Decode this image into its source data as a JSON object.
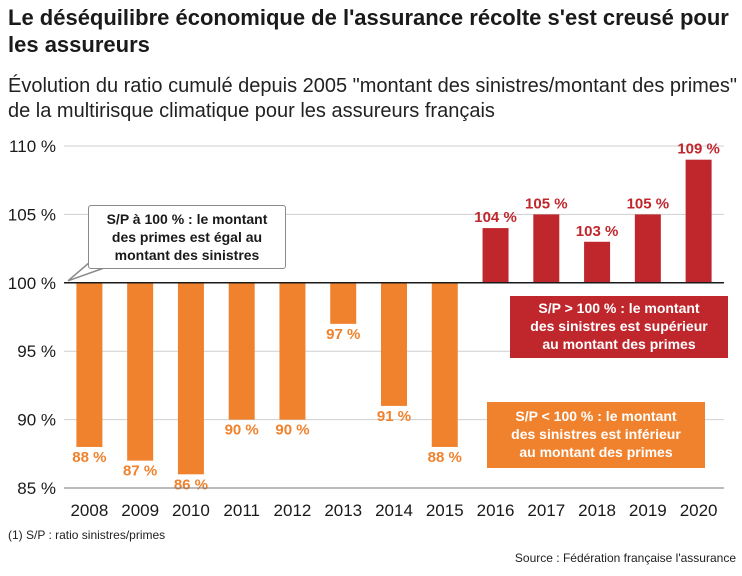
{
  "title": "Le déséquilibre économique de l'assurance récolte s'est creusé pour les assureurs",
  "subtitle": "Évolution du ratio cumulé depuis 2005 \"montant des sinistres/montant des primes\" de la multirisque climatique pour les assureurs français",
  "footnote": "(1) S/P : ratio sinistres/primes",
  "source": "Source : Fédération française l'assurance",
  "callouts": {
    "equal": [
      "S/P à 100 % : le montant",
      "des primes est égal au",
      "montant des sinistres"
    ],
    "above": [
      "S/P > 100 % : le montant",
      "des sinistres est supérieur",
      "au montant des primes"
    ],
    "below": [
      "S/P < 100 % : le montant",
      "des sinistres est inférieur",
      "au montant des primes"
    ]
  },
  "colors": {
    "below": "#f0822e",
    "above": "#c0272d",
    "gridline": "#cfcfcf",
    "baseline": "#1a1a1a"
  },
  "chart_data": {
    "type": "bar",
    "categories": [
      "2008",
      "2009",
      "2010",
      "2011",
      "2012",
      "2013",
      "2014",
      "2015",
      "2016",
      "2017",
      "2018",
      "2019",
      "2020"
    ],
    "values": [
      88,
      87,
      86,
      90,
      90,
      97,
      91,
      88,
      104,
      105,
      103,
      105,
      109
    ],
    "labels": [
      "88 %",
      "87 %",
      "86 %",
      "90 %",
      "90 %",
      "97 %",
      "91 %",
      "88 %",
      "104 %",
      "105 %",
      "103 %",
      "105 %",
      "109 %"
    ],
    "baseline": 100,
    "ylim": [
      85,
      110
    ],
    "yticks": [
      85,
      90,
      95,
      100,
      105,
      110
    ],
    "ytick_labels": [
      "85 %",
      "90 %",
      "95 %",
      "100 %",
      "105 %",
      "110 %"
    ],
    "grid": true,
    "title": "",
    "xlabel": "",
    "ylabel": ""
  }
}
